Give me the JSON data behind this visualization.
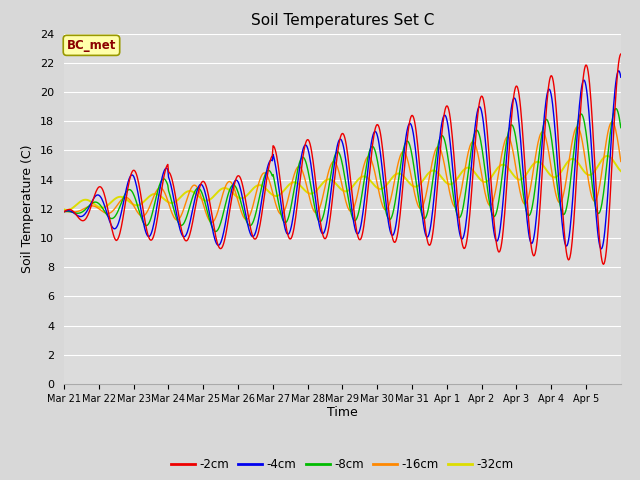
{
  "title": "Soil Temperatures Set C",
  "xlabel": "Time",
  "ylabel": "Soil Temperature (C)",
  "ylim": [
    0,
    24
  ],
  "yticks": [
    0,
    2,
    4,
    6,
    8,
    10,
    12,
    14,
    16,
    18,
    20,
    22,
    24
  ],
  "annotation": "BC_met",
  "plot_bg_color": "#dcdcdc",
  "fig_bg_color": "#d8d8d8",
  "series_colors": {
    "-2cm": "#ee0000",
    "-4cm": "#0000ee",
    "-8cm": "#00bb00",
    "-16cm": "#ff8800",
    "-32cm": "#dddd00"
  },
  "legend_order": [
    "-2cm",
    "-4cm",
    "-8cm",
    "-16cm",
    "-32cm"
  ],
  "xtick_labels": [
    "Mar 21",
    "Mar 22",
    "Mar 23",
    "Mar 24",
    "Mar 25",
    "Mar 26",
    "Mar 27",
    "Mar 28",
    "Mar 29",
    "Mar 30",
    "Mar 31",
    "Apr 1",
    "Apr 2",
    "Apr 3",
    "Apr 4",
    "Apr 5"
  ],
  "num_days": 16,
  "points_per_day": 48
}
